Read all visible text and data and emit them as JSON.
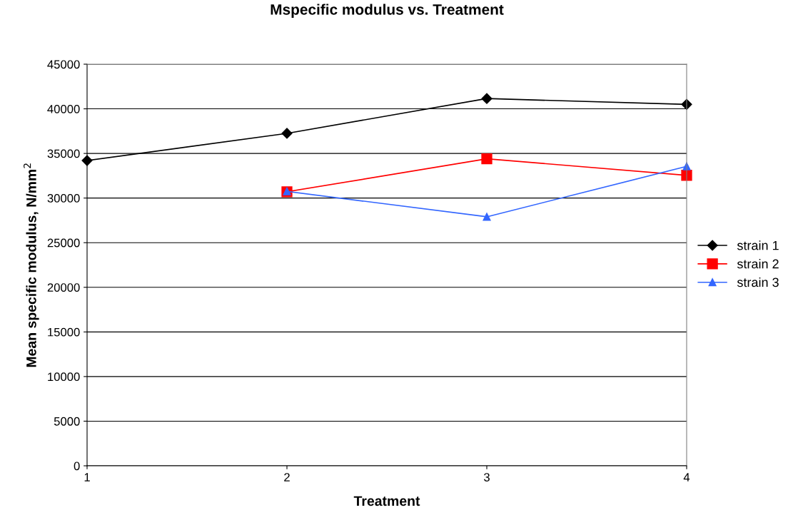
{
  "chart_data": {
    "type": "line",
    "title": "Mspecific modulus vs. Treatment",
    "xlabel": "Treatment",
    "ylabel": "Mean specific modulus, N/mm$^{2}$",
    "x": [
      1,
      2,
      3,
      4
    ],
    "xlim": [
      1,
      4
    ],
    "xticks": [
      1,
      2,
      3,
      4
    ],
    "ylim": [
      0,
      45000
    ],
    "yticks": [
      0,
      5000,
      10000,
      15000,
      20000,
      25000,
      30000,
      35000,
      40000,
      45000
    ],
    "grid": "y",
    "legend": "right",
    "series": [
      {
        "name": "strain 1",
        "color": "#000000",
        "marker": "diamond",
        "values": [
          34200,
          37250,
          41150,
          40500
        ]
      },
      {
        "name": "strain 2",
        "color": "#ff0000",
        "marker": "square",
        "values": [
          null,
          30700,
          34400,
          32550
        ]
      },
      {
        "name": "strain 3",
        "color": "#3366ff",
        "marker": "triangle",
        "values": [
          null,
          30750,
          27900,
          33550
        ]
      }
    ]
  }
}
